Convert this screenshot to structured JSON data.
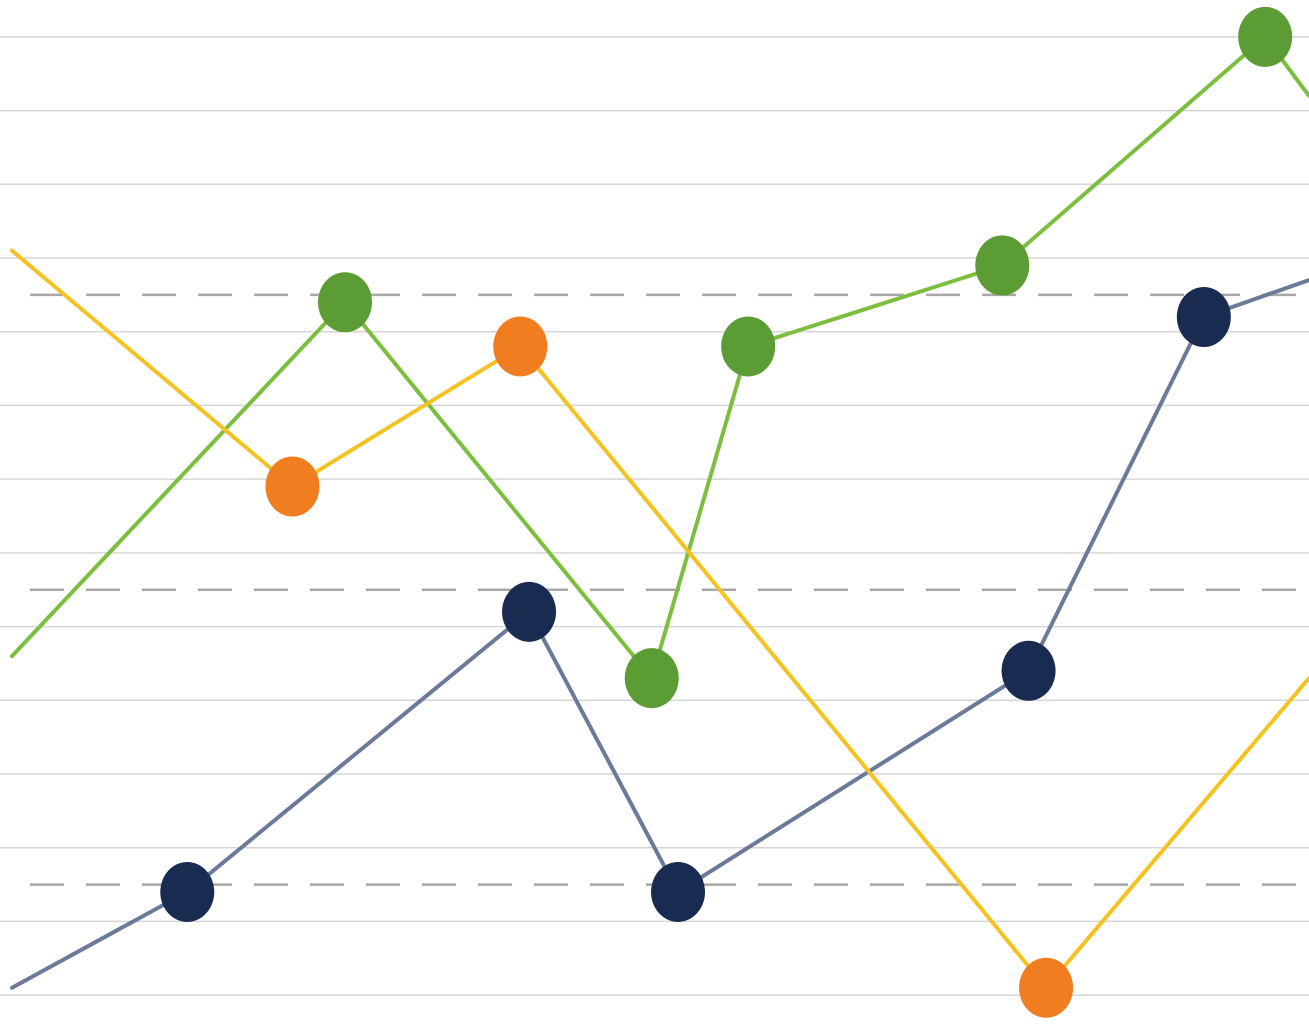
{
  "chart_data": {
    "type": "line",
    "title": "",
    "xlabel": "",
    "ylabel": "",
    "x": [
      0,
      1,
      2,
      3,
      4,
      5,
      6,
      7
    ],
    "xlim": [
      0,
      7.4
    ],
    "ylim": [
      0,
      14
    ],
    "grid": true,
    "grid_solid": [
      0.5,
      1.5,
      2.5,
      3.5,
      4.5,
      5.5,
      6.5,
      7.5,
      8.5,
      9.5,
      10.5,
      11.5,
      12.5,
      13.5
    ],
    "grid_dashed": [
      2.0,
      6.0,
      10.0
    ],
    "legend": "none",
    "series": [
      {
        "color": "#1a2b52",
        "line_color": "#6a7a98",
        "x": [
          0,
          1,
          2.95,
          3.8,
          5.8,
          6.8,
          7.4
        ],
        "y": [
          0.6,
          1.9,
          5.7,
          1.9,
          4.9,
          9.7,
          10.2
        ],
        "markers": [
          1,
          2,
          3,
          4,
          5
        ]
      },
      {
        "color": "#5b9c35",
        "line_color": "#7cbf3f",
        "x": [
          0,
          1.9,
          3.65,
          4.2,
          5.65,
          7.15,
          7.4
        ],
        "y": [
          5.1,
          9.9,
          4.8,
          9.3,
          10.4,
          13.5,
          12.7
        ],
        "markers": [
          1,
          2,
          3,
          4,
          5
        ]
      },
      {
        "color": "#f07d1f",
        "line_color": "#f4c322",
        "x": [
          0,
          1.6,
          2.9,
          5.9,
          7.4
        ],
        "y": [
          10.6,
          7.4,
          9.3,
          0.6,
          4.8
        ],
        "markers": [
          1,
          2,
          3
        ]
      }
    ]
  }
}
